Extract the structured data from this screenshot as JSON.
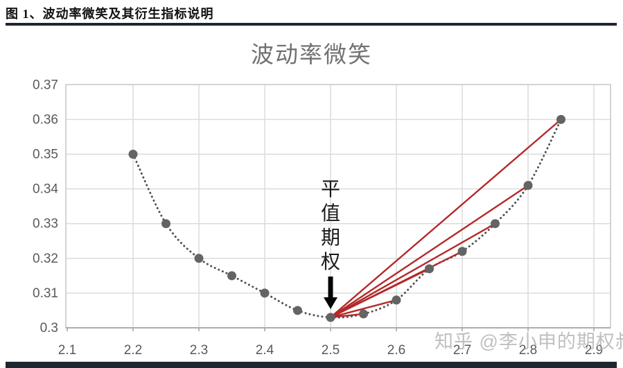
{
  "header": {
    "title": "图 1、波动率微笑及其衍生指标说明"
  },
  "watermark": {
    "text": "知乎 @李小申的期权叔"
  },
  "chart_data": {
    "type": "scatter",
    "title": "波动率微笑",
    "xlabel": "",
    "ylabel": "",
    "xlim": [
      2.1,
      2.925
    ],
    "ylim": [
      0.3,
      0.37
    ],
    "grid": true,
    "xticks": [
      "2.1",
      "2.2",
      "2.3",
      "2.4",
      "2.5",
      "2.6",
      "2.7",
      "2.8",
      "2.9"
    ],
    "yticks": [
      "0.3",
      "0.31",
      "0.32",
      "0.33",
      "0.34",
      "0.35",
      "0.36",
      "0.37"
    ],
    "points": [
      [
        2.2,
        0.35
      ],
      [
        2.25,
        0.33
      ],
      [
        2.3,
        0.32
      ],
      [
        2.35,
        0.315
      ],
      [
        2.4,
        0.31
      ],
      [
        2.45,
        0.305
      ],
      [
        2.5,
        0.303
      ],
      [
        2.55,
        0.304
      ],
      [
        2.6,
        0.308
      ],
      [
        2.65,
        0.317
      ],
      [
        2.7,
        0.322
      ],
      [
        2.75,
        0.33
      ],
      [
        2.8,
        0.341
      ],
      [
        2.85,
        0.36
      ]
    ],
    "trend": "dotted smile curve through all points",
    "red_fan": {
      "from_x": 2.5,
      "to_x": [
        2.55,
        2.6,
        2.65,
        2.7,
        2.75,
        2.8,
        2.85
      ]
    },
    "annotation": {
      "label": "平值期权",
      "arrow_target_x": 2.5,
      "arrow_target_y": 0.303
    },
    "colors": {
      "red_line": "#b32929",
      "point": "#646464",
      "dotted": "#4f4f4f",
      "grid": "#d9d9d9",
      "border": "#c9c9c9",
      "axis": "#a6a6a6",
      "tick_label": "#595959",
      "title": "#727272",
      "annotation_text": "#1a1a1a",
      "arrow": "#050505",
      "rule": "#1e2630",
      "watermark": "#8c8c8c"
    }
  }
}
